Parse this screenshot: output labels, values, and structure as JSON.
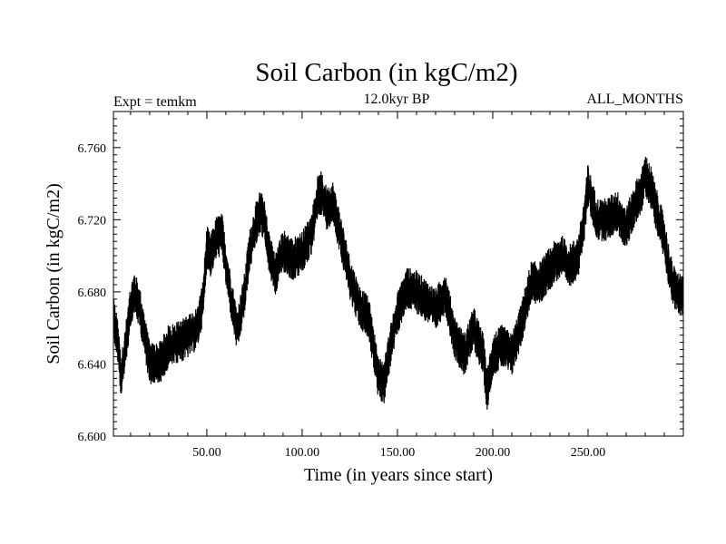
{
  "chart_data": {
    "type": "line",
    "title": "Soil Carbon (in kgC/m2)",
    "subtitle": "12.0kyr BP",
    "left_label": "Expt = temkm",
    "right_label": "ALL_MONTHS",
    "xlabel": "Time (in years since start)",
    "ylabel": "Soil Carbon (in kgC/m2)",
    "xlim": [
      1,
      300
    ],
    "ylim": [
      6.6,
      6.78
    ],
    "x_ticks": [
      50,
      100,
      150,
      200,
      250
    ],
    "x_tick_labels": [
      "50.00",
      "100.00",
      "150.00",
      "200.00",
      "250.00"
    ],
    "y_ticks": [
      6.6,
      6.64,
      6.68,
      6.72,
      6.76
    ],
    "y_tick_labels": [
      "6.600",
      "6.640",
      "6.680",
      "6.720",
      "6.760"
    ],
    "series": [
      {
        "name": "Soil Carbon",
        "noise_amplitude": 0.012,
        "x": [
          1,
          3,
          5,
          8,
          10,
          12,
          15,
          20,
          25,
          30,
          35,
          40,
          45,
          48,
          50,
          52,
          55,
          58,
          60,
          63,
          66,
          70,
          72,
          75,
          78,
          80,
          83,
          86,
          90,
          95,
          100,
          105,
          108,
          110,
          113,
          116,
          120,
          125,
          130,
          135,
          140,
          143,
          146,
          150,
          155,
          160,
          165,
          170,
          175,
          180,
          185,
          190,
          195,
          197,
          200,
          205,
          210,
          215,
          220,
          225,
          228,
          232,
          236,
          240,
          245,
          248,
          250,
          252,
          255,
          260,
          265,
          270,
          275,
          278,
          280,
          283,
          286,
          290,
          293,
          296,
          300
        ],
        "y": [
          6.665,
          6.655,
          6.632,
          6.655,
          6.672,
          6.68,
          6.67,
          6.64,
          6.64,
          6.65,
          6.652,
          6.655,
          6.66,
          6.675,
          6.705,
          6.7,
          6.71,
          6.712,
          6.695,
          6.675,
          6.658,
          6.68,
          6.7,
          6.715,
          6.725,
          6.72,
          6.7,
          6.69,
          6.703,
          6.698,
          6.702,
          6.712,
          6.732,
          6.735,
          6.726,
          6.73,
          6.712,
          6.688,
          6.672,
          6.665,
          6.632,
          6.63,
          6.648,
          6.668,
          6.682,
          6.68,
          6.675,
          6.67,
          6.68,
          6.655,
          6.645,
          6.66,
          6.645,
          6.625,
          6.645,
          6.65,
          6.645,
          6.662,
          6.685,
          6.685,
          6.69,
          6.696,
          6.7,
          6.694,
          6.7,
          6.72,
          6.74,
          6.73,
          6.72,
          6.72,
          6.725,
          6.715,
          6.73,
          6.735,
          6.745,
          6.738,
          6.725,
          6.71,
          6.69,
          6.68,
          6.678
        ]
      }
    ]
  }
}
